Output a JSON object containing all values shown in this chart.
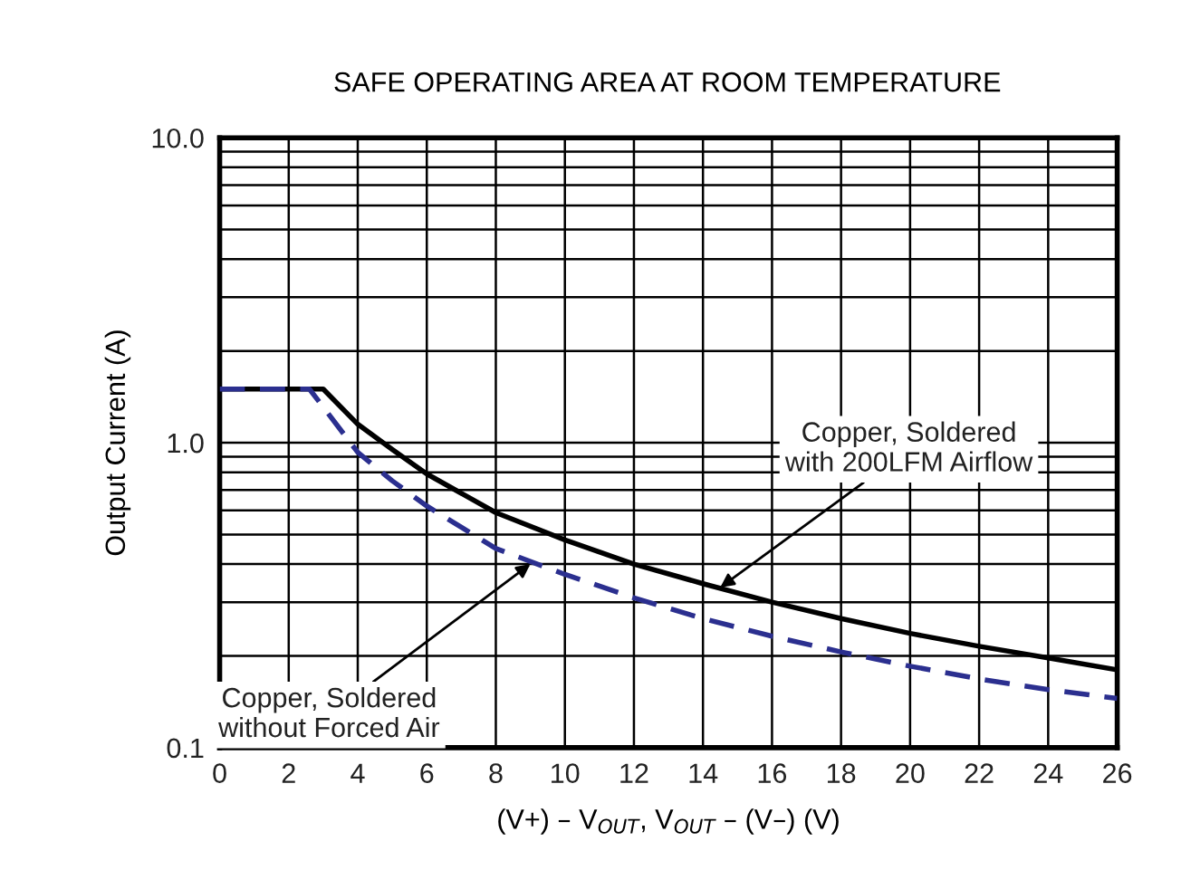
{
  "chart_data": {
    "type": "line",
    "title": "SAFE OPERATING AREA AT ROOM TEMPERATURE",
    "xlabel": "(V+) – V$_{OUT}$, V$_{OUT}$ – (V–) (V)",
    "ylabel": "Output Current (A)",
    "log": "y",
    "xlim": [
      0,
      26
    ],
    "xticks": [
      0,
      2,
      4,
      6,
      8,
      10,
      12,
      14,
      16,
      18,
      20,
      22,
      24,
      26
    ],
    "ylim": [
      0.1,
      10.0
    ],
    "yticks": [
      {
        "value": 0.1,
        "label": "0.1"
      },
      {
        "value": 0.2,
        "label": null
      },
      {
        "value": 0.3,
        "label": null
      },
      {
        "value": 0.4,
        "label": null
      },
      {
        "value": 0.5,
        "label": null
      },
      {
        "value": 0.6,
        "label": null
      },
      {
        "value": 0.7,
        "label": null
      },
      {
        "value": 0.8,
        "label": null
      },
      {
        "value": 0.9,
        "label": null
      },
      {
        "value": 1.0,
        "label": "1.0"
      },
      {
        "value": 2,
        "label": null
      },
      {
        "value": 3,
        "label": null
      },
      {
        "value": 4,
        "label": null
      },
      {
        "value": 5,
        "label": null
      },
      {
        "value": 6,
        "label": null
      },
      {
        "value": 7,
        "label": null
      },
      {
        "value": 8,
        "label": null
      },
      {
        "value": 9,
        "label": null
      },
      {
        "value": 10.0,
        "label": "10.0"
      }
    ],
    "grid": true,
    "legend": false,
    "marker": "none",
    "series": [
      {
        "color": "#000000",
        "line_style": "solid",
        "x": [
          0,
          3,
          4,
          5,
          6,
          8,
          10,
          12,
          14,
          16,
          18,
          20,
          22,
          24,
          26
        ],
        "values": [
          1.5,
          1.5,
          1.15,
          0.95,
          0.79,
          0.59,
          0.48,
          0.4,
          0.345,
          0.3,
          0.265,
          0.237,
          0.215,
          0.197,
          0.18
        ]
      },
      {
        "color": "#2b2f8f",
        "line_style": "dashed",
        "x": [
          0,
          2.6,
          4,
          5,
          6,
          8,
          10,
          12,
          14,
          16,
          18,
          20,
          22,
          24,
          26
        ],
        "values": [
          1.5,
          1.5,
          0.93,
          0.75,
          0.62,
          0.45,
          0.37,
          0.31,
          0.265,
          0.232,
          0.206,
          0.185,
          0.168,
          0.155,
          0.145
        ]
      }
    ],
    "annotations": [
      {
        "text": "Copper, Soldered\nwith 200LFM Airflow",
        "x": 14.5,
        "y": 0.335
      },
      {
        "text": "Copper, Soldered\nwithout Forced Air",
        "x": 9,
        "y": 0.4
      }
    ]
  }
}
